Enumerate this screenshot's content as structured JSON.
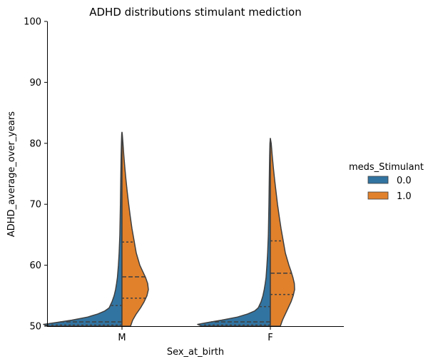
{
  "chart_data": {
    "type": "violin",
    "title": "ADHD distributions stimulant mediction",
    "xlabel": "Sex_at_birth",
    "ylabel": "ADHD_average_over_years",
    "ylim": [
      50,
      100
    ],
    "yticks": [
      "50",
      "60",
      "70",
      "80",
      "90",
      "100"
    ],
    "categories": [
      "M",
      "F"
    ],
    "split": true,
    "inner": "quartile",
    "legend": {
      "title": "meds_Stimulant",
      "placement": "right",
      "entries": [
        "0.0",
        "1.0"
      ]
    },
    "colors": {
      "0.0": "#3274a1",
      "1.0": "#e1812c",
      "outline": "#3f3f3f"
    },
    "series": [
      {
        "name": "0.0",
        "groups": [
          {
            "category": "M",
            "quartiles": [
              50.0,
              50.7,
              53.4
            ],
            "density": [
              [
                50.0,
                0.52
              ],
              [
                50.3,
                0.55
              ],
              [
                50.6,
                0.46
              ],
              [
                51.0,
                0.35
              ],
              [
                51.5,
                0.24
              ],
              [
                52.0,
                0.17
              ],
              [
                52.5,
                0.12
              ],
              [
                53.0,
                0.09
              ],
              [
                54.0,
                0.07
              ],
              [
                55.0,
                0.055
              ],
              [
                56.0,
                0.045
              ],
              [
                57.0,
                0.038
              ],
              [
                58.0,
                0.032
              ],
              [
                60.0,
                0.025
              ],
              [
                62.0,
                0.02
              ],
              [
                65.0,
                0.015
              ],
              [
                70.0,
                0.011
              ],
              [
                75.0,
                0.008
              ],
              [
                78.0,
                0.006
              ],
              [
                80.0,
                0.004
              ],
              [
                81.5,
                0.002
              ],
              [
                81.8,
                0
              ]
            ]
          },
          {
            "category": "F",
            "quartiles": [
              50.0,
              50.7,
              53.2
            ],
            "density": [
              [
                50.0,
                0.48
              ],
              [
                50.3,
                0.51
              ],
              [
                50.6,
                0.44
              ],
              [
                51.0,
                0.34
              ],
              [
                51.5,
                0.23
              ],
              [
                52.0,
                0.16
              ],
              [
                52.5,
                0.11
              ],
              [
                53.0,
                0.085
              ],
              [
                54.0,
                0.065
              ],
              [
                55.0,
                0.052
              ],
              [
                56.0,
                0.043
              ],
              [
                57.0,
                0.036
              ],
              [
                58.0,
                0.03
              ],
              [
                60.0,
                0.024
              ],
              [
                62.0,
                0.019
              ],
              [
                65.0,
                0.014
              ],
              [
                70.0,
                0.01
              ],
              [
                75.0,
                0.007
              ],
              [
                78.0,
                0.005
              ],
              [
                80.0,
                0.003
              ],
              [
                80.8,
                0
              ]
            ]
          }
        ]
      },
      {
        "name": "1.0",
        "groups": [
          {
            "category": "M",
            "quartiles": [
              54.6,
              58.1,
              63.8
            ],
            "density": [
              [
                50.0,
                0.06
              ],
              [
                51.0,
                0.075
              ],
              [
                52.0,
                0.1
              ],
              [
                53.0,
                0.13
              ],
              [
                54.0,
                0.155
              ],
              [
                55.0,
                0.175
              ],
              [
                56.0,
                0.185
              ],
              [
                57.0,
                0.18
              ],
              [
                58.0,
                0.165
              ],
              [
                59.0,
                0.145
              ],
              [
                60.0,
                0.125
              ],
              [
                62.0,
                0.1
              ],
              [
                64.0,
                0.085
              ],
              [
                66.0,
                0.07
              ],
              [
                68.0,
                0.058
              ],
              [
                70.0,
                0.047
              ],
              [
                72.0,
                0.037
              ],
              [
                74.0,
                0.028
              ],
              [
                76.0,
                0.02
              ],
              [
                78.0,
                0.013
              ],
              [
                80.0,
                0.007
              ],
              [
                81.5,
                0.002
              ],
              [
                81.8,
                0
              ]
            ]
          },
          {
            "category": "F",
            "quartiles": [
              55.2,
              58.7,
              64.0
            ],
            "density": [
              [
                50.0,
                0.07
              ],
              [
                51.0,
                0.085
              ],
              [
                52.0,
                0.105
              ],
              [
                53.0,
                0.125
              ],
              [
                54.0,
                0.145
              ],
              [
                55.0,
                0.16
              ],
              [
                56.0,
                0.17
              ],
              [
                57.0,
                0.168
              ],
              [
                58.0,
                0.158
              ],
              [
                59.0,
                0.145
              ],
              [
                60.0,
                0.13
              ],
              [
                62.0,
                0.105
              ],
              [
                64.0,
                0.09
              ],
              [
                66.0,
                0.075
              ],
              [
                68.0,
                0.062
              ],
              [
                70.0,
                0.05
              ],
              [
                72.0,
                0.04
              ],
              [
                74.0,
                0.03
              ],
              [
                76.0,
                0.021
              ],
              [
                78.0,
                0.013
              ],
              [
                80.0,
                0.006
              ],
              [
                80.8,
                0
              ]
            ]
          }
        ]
      }
    ]
  }
}
